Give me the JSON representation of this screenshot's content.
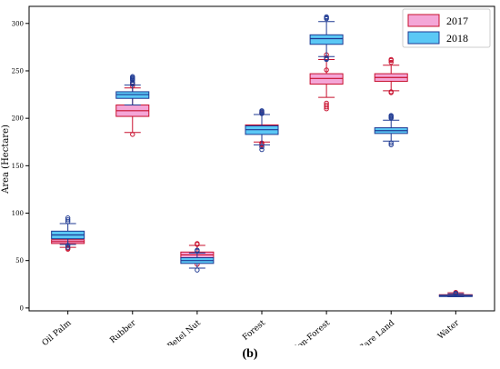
{
  "caption_label": "(b)",
  "chart_data": {
    "type": "box",
    "ylabel": "Area (Hectare)",
    "xlabel": "",
    "ylim": [
      -3,
      318
    ],
    "yticks": [
      0,
      50,
      100,
      150,
      200,
      250,
      300
    ],
    "grid": false,
    "legend_position": "top-right",
    "categories": [
      "Oil Palm",
      "Rubber",
      "Betel Nut",
      "Forest",
      "Non-Forest",
      "Bare Land",
      "Water"
    ],
    "series": [
      {
        "name": "2017",
        "fill": "#f4a6d7",
        "edge": "#c8102e",
        "boxes": [
          {
            "whislo": 64,
            "q1": 68,
            "med": 70,
            "q3": 72,
            "whishi": 75,
            "fliers": [
              62,
              63
            ]
          },
          {
            "whislo": 185,
            "q1": 202,
            "med": 208,
            "q3": 214,
            "whishi": 232,
            "fliers": [
              183,
              234,
              236,
              237
            ]
          },
          {
            "whislo": 48,
            "q1": 53,
            "med": 56,
            "q3": 59,
            "whishi": 66,
            "fliers": [
              46,
              67,
              68
            ]
          },
          {
            "whislo": 175,
            "q1": 184,
            "med": 189,
            "q3": 193,
            "whishi": 204,
            "fliers": [
              170,
              172,
              173,
              174,
              205,
              206
            ]
          },
          {
            "whislo": 222,
            "q1": 236,
            "med": 242,
            "q3": 247,
            "whishi": 262,
            "fliers": [
              210,
              212,
              214,
              216,
              251,
              264,
              267
            ]
          },
          {
            "whislo": 229,
            "q1": 239,
            "med": 243,
            "q3": 247,
            "whishi": 256,
            "fliers": [
              227,
              228,
              259,
              261,
              262
            ]
          },
          {
            "whislo": 12,
            "q1": 13,
            "med": 13.5,
            "q3": 14,
            "whishi": 16,
            "fliers": [
              15.5,
              16.5
            ]
          }
        ]
      },
      {
        "name": "2018",
        "fill": "#5bc8f5",
        "edge": "#1f3a93",
        "boxes": [
          {
            "whislo": 67,
            "q1": 73,
            "med": 77,
            "q3": 81,
            "whishi": 89,
            "fliers": [
              64,
              66,
              91,
              93,
              95
            ]
          },
          {
            "whislo": 214,
            "q1": 221,
            "med": 225,
            "q3": 228,
            "whishi": 235,
            "fliers": [
              236,
              238,
              240,
              241,
              242,
              243,
              244
            ]
          },
          {
            "whislo": 42,
            "q1": 47,
            "med": 50,
            "q3": 53,
            "whishi": 58,
            "fliers": [
              40,
              60,
              61
            ]
          },
          {
            "whislo": 172,
            "q1": 183,
            "med": 188,
            "q3": 192,
            "whishi": 204,
            "fliers": [
              167,
              170,
              205,
              206,
              207,
              208
            ]
          },
          {
            "whislo": 265,
            "q1": 278,
            "med": 284,
            "q3": 288,
            "whishi": 302,
            "fliers": [
              262,
              263,
              305,
              306,
              307
            ]
          },
          {
            "whislo": 176,
            "q1": 184,
            "med": 187,
            "q3": 190,
            "whishi": 198,
            "fliers": [
              172,
              174,
              200,
              201,
              202,
              203
            ]
          },
          {
            "whislo": 12,
            "q1": 12.5,
            "med": 13,
            "q3": 13.5,
            "whishi": 15,
            "fliers": [
              14.5,
              15.5
            ]
          }
        ]
      }
    ]
  }
}
